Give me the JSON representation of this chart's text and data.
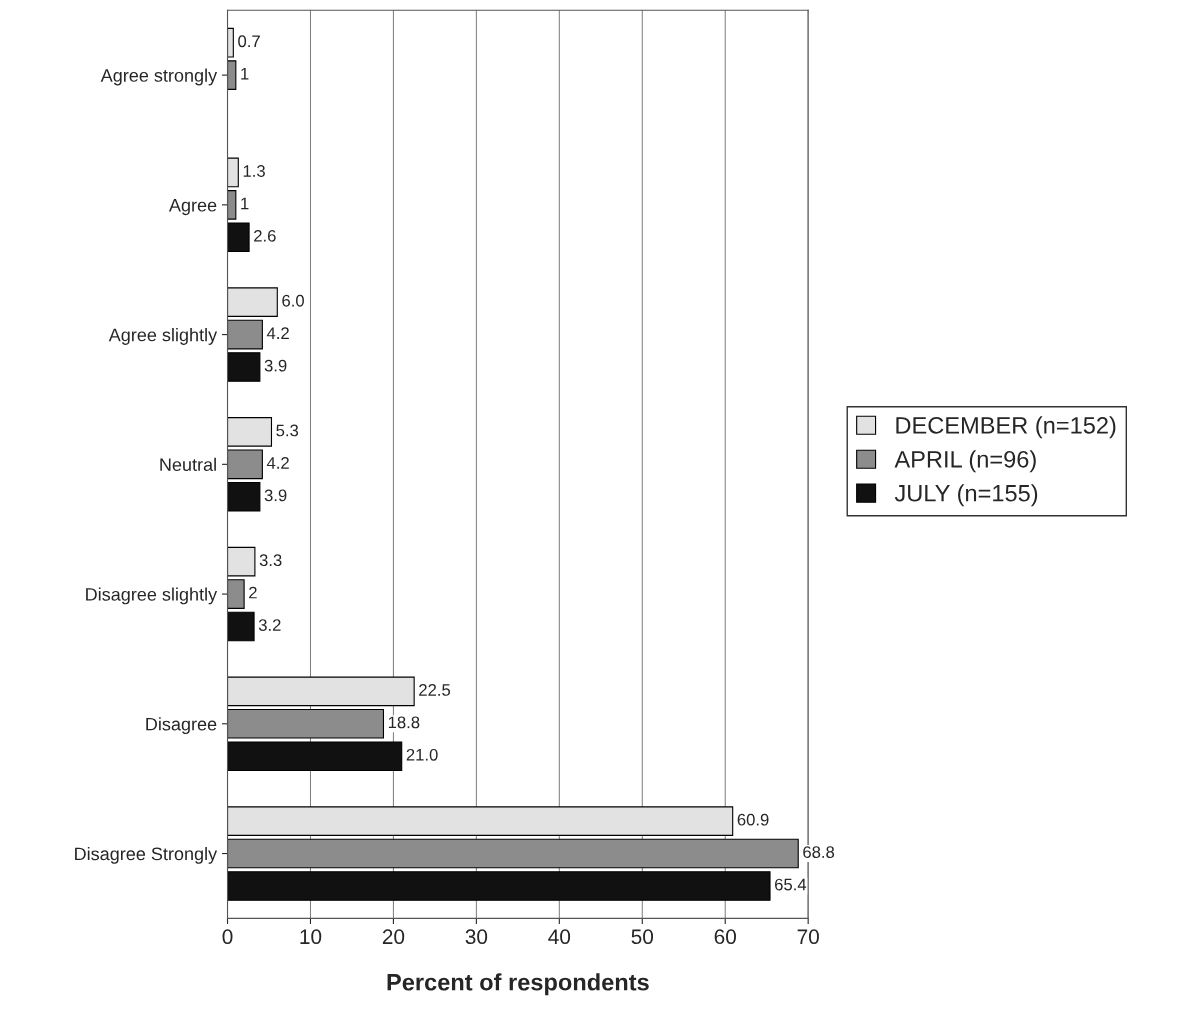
{
  "chart_data": {
    "type": "bar",
    "orientation": "horizontal",
    "xlabel": "Percent of respondents",
    "categories": [
      "Agree strongly",
      "Agree",
      "Agree slightly",
      "Neutral",
      "Disagree slightly",
      "Disagree",
      "Disagree Strongly"
    ],
    "series": [
      {
        "name": "DECEMBER (n=152)",
        "color": "#e2e2e2",
        "values": [
          0.7,
          1.3,
          6.0,
          5.3,
          3.3,
          22.5,
          60.9
        ],
        "value_labels": [
          "0.7",
          "1.3",
          "6.0",
          "5.3",
          "3.3",
          "22.5",
          "60.9"
        ]
      },
      {
        "name": "APRIL (n=96)",
        "color": "#8c8c8c",
        "values": [
          1,
          1,
          4.2,
          4.2,
          2,
          18.8,
          68.8
        ],
        "value_labels": [
          "1",
          "1",
          "4.2",
          "4.2",
          "2",
          "18.8",
          "68.8"
        ]
      },
      {
        "name": "JULY (n=155)",
        "color": "#111111",
        "values": [
          null,
          2.6,
          3.9,
          3.9,
          3.2,
          21.0,
          65.4
        ],
        "value_labels": [
          null,
          "2.6",
          "3.9",
          "3.9",
          "3.2",
          "21.0",
          "65.4"
        ]
      }
    ],
    "xlim": [
      0,
      70
    ],
    "xticks": [
      0,
      10,
      20,
      30,
      40,
      50,
      60,
      70
    ],
    "grid": "x",
    "legend": "right"
  }
}
